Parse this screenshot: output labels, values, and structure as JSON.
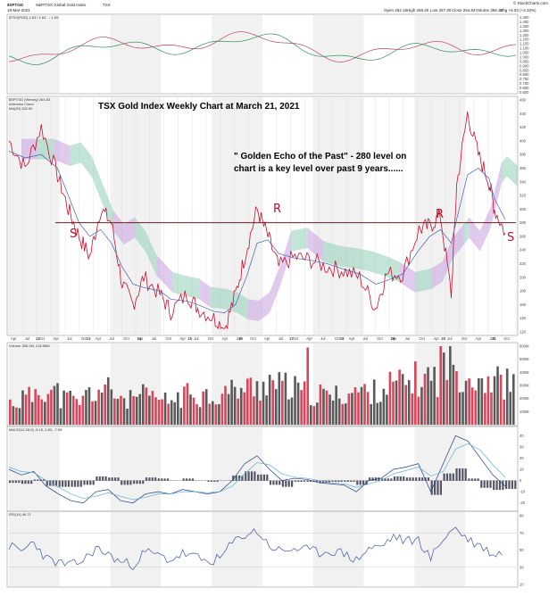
{
  "header": {
    "symbol": "$SPTGD",
    "name": "S&P/TSX Global Gold Index",
    "exchange": "TSX",
    "date": "19-Mar-2021",
    "open": "Open 262.18",
    "high": "High 268.40",
    "low": "Low 257.30",
    "close": "Close 264.83",
    "volume": "Volume 358.1M",
    "chg": "Chg +6.03 (+2.33%)",
    "site": "© StockCharts.com"
  },
  "title": "TSX Gold Index Weekly Chart at March 21, 2021",
  "annotation_lines": [
    "\" Golden Echo of the Past\" - 280 level on",
    "chart is a key level over past 9 years......"
  ],
  "hand_marks": [
    "S",
    "R",
    "R",
    "S"
  ],
  "panel_labels": {
    "rs": "$TSX(PGD) 1.63 / 1.63 → 1.59",
    "main": "$SPTGD (Weekly) 264.83",
    "main2": "Ichimoku Cloud",
    "main3": "MA(20) 262.50",
    "volume": "Volume 358.1M, 218.56M",
    "macd": "MACD(12,26,9) -5.15, 2.83, -7.98",
    "rsi": "RSI(14) 46.71"
  },
  "rs_ticks": [
    "1.450",
    "1.400",
    "1.350",
    "1.300",
    "1.250",
    "1.200",
    "1.150",
    "1.100",
    "1.050",
    "1.000",
    "0.950",
    "0.900",
    "0.850",
    "0.800",
    "0.750",
    "0.700",
    "0.650",
    "0.600"
  ],
  "price_ticks": [
    "460",
    "440",
    "420",
    "400",
    "380",
    "360",
    "340",
    "320",
    "300",
    "280",
    "260",
    "240",
    "220",
    "200",
    "180",
    "160",
    "140",
    "120"
  ],
  "volume_ticks": [
    "600M",
    "500M",
    "400M",
    "300M",
    "200M",
    "100M"
  ],
  "macd_ticks": [
    "40",
    "30",
    "20",
    "10",
    "0",
    "-10",
    "-20"
  ],
  "rsi_ticks": [
    "90",
    "70",
    "50",
    "30",
    "10"
  ],
  "x_labels": [
    "Apr",
    "Jul",
    "Oct",
    "Apr",
    "Jul",
    "Oct",
    "Apr",
    "Jul",
    "Oct",
    "Apr",
    "Jul",
    "Oct",
    "Apr",
    "Jul",
    "Oct",
    "Apr",
    "Jul",
    "Oct",
    "Apr",
    "Jul",
    "Oct",
    "Apr",
    "Jul",
    "Oct",
    "Apr",
    "Jul",
    "Oct",
    "Apr",
    "Jul",
    "Oct",
    "Apr",
    "Jul",
    "Oct",
    "Apr",
    "Jul",
    "Oct"
  ],
  "year_labels": [
    "2012",
    "2013",
    "2014",
    "2015",
    "2016",
    "2017",
    "2018",
    "2019",
    "2020",
    "2021"
  ],
  "colors": {
    "price": "#c8102e",
    "ma": "#4a5fb0",
    "cloud_bull": "#8fcfb7",
    "cloud_bear": "#c7a0e0",
    "level_line": "#7a1a1a",
    "vol_up": "#5a5a5a",
    "vol_down": "#d9455a",
    "rsi": "#3e56a0",
    "hand": "#b3122b"
  },
  "chart_data": [
    {
      "type": "line",
      "title": "TSX Gold Index Weekly Chart at March 21, 2021",
      "ylim": [
        120,
        460
      ],
      "key_level": 280,
      "x": [
        2012.0,
        2012.3,
        2012.6,
        2012.9,
        2013.1,
        2013.3,
        2013.5,
        2013.7,
        2013.9,
        2014.1,
        2014.3,
        2014.5,
        2014.8,
        2015.0,
        2015.3,
        2015.5,
        2015.8,
        2016.0,
        2016.2,
        2016.4,
        2016.6,
        2016.8,
        2017.0,
        2017.3,
        2017.6,
        2017.9,
        2018.2,
        2018.5,
        2018.8,
        2019.0,
        2019.3,
        2019.6,
        2019.8,
        2020.0,
        2020.2,
        2020.3,
        2020.5,
        2020.7,
        2020.9,
        2021.0,
        2021.2
      ],
      "series": [
        {
          "values": [
            400,
            360,
            420,
            350,
            300,
            260,
            230,
            300,
            280,
            190,
            160,
            200,
            175,
            150,
            175,
            155,
            140,
            125,
            175,
            240,
            300,
            260,
            215,
            230,
            225,
            215,
            210,
            200,
            155,
            205,
            205,
            270,
            275,
            290,
            175,
            335,
            440,
            380,
            340,
            300,
            265
          ]
        },
        {
          "values": [
            385,
            375,
            380,
            360,
            320,
            280,
            260,
            270,
            250,
            215,
            190,
            185,
            180,
            168,
            165,
            160,
            150,
            148,
            160,
            200,
            250,
            255,
            235,
            228,
            225,
            220,
            212,
            205,
            190,
            195,
            205,
            240,
            260,
            270,
            250,
            285,
            350,
            360,
            345,
            315,
            285
          ]
        }
      ]
    },
    {
      "type": "bar",
      "title": "Volume",
      "ylim": [
        0,
        600
      ],
      "values": [
        180,
        220,
        300,
        260,
        210,
        190,
        250,
        280,
        240,
        200,
        230,
        210,
        190,
        220,
        260,
        240,
        230,
        270,
        290,
        300,
        350,
        310,
        280,
        260,
        240,
        230,
        250,
        270,
        260,
        300,
        320,
        340,
        360,
        380,
        520,
        440,
        400,
        380,
        350,
        330,
        358
      ]
    },
    {
      "type": "line",
      "title": "MACD",
      "ylim": [
        -25,
        45
      ],
      "series": [
        {
          "values": [
            10,
            5,
            8,
            -5,
            -12,
            -18,
            -20,
            -10,
            -8,
            -18,
            -20,
            -12,
            -10,
            -12,
            -8,
            -10,
            -12,
            -10,
            0,
            15,
            22,
            10,
            0,
            2,
            1,
            -2,
            -3,
            -4,
            -10,
            0,
            2,
            10,
            12,
            15,
            -10,
            15,
            40,
            35,
            20,
            5,
            -5
          ]
        },
        {
          "values": [
            12,
            8,
            7,
            0,
            -6,
            -12,
            -16,
            -14,
            -11,
            -14,
            -17,
            -15,
            -12,
            -12,
            -10,
            -10,
            -11,
            -10,
            -5,
            6,
            16,
            14,
            6,
            3,
            2,
            0,
            -2,
            -3,
            -6,
            -3,
            0,
            6,
            9,
            12,
            4,
            8,
            28,
            33,
            27,
            14,
            3
          ]
        }
      ]
    },
    {
      "type": "line",
      "title": "RSI(14)",
      "ylim": [
        10,
        90
      ],
      "values": [
        55,
        48,
        60,
        40,
        35,
        32,
        38,
        52,
        45,
        36,
        33,
        48,
        44,
        38,
        46,
        42,
        36,
        40,
        58,
        68,
        72,
        55,
        48,
        52,
        50,
        47,
        49,
        46,
        38,
        52,
        54,
        66,
        60,
        62,
        40,
        64,
        76,
        62,
        55,
        45,
        47
      ]
    }
  ]
}
